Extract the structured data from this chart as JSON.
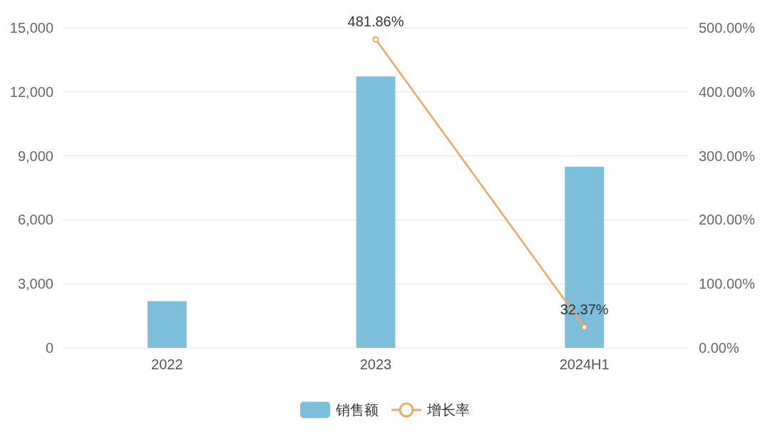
{
  "chart_data": {
    "type": "bar",
    "categories": [
      "2022",
      "2023",
      "2024H1"
    ],
    "series": [
      {
        "name": "销售额",
        "color": "#7dbedb",
        "values": [
          2190,
          12720,
          8490
        ]
      },
      {
        "name": "增长率",
        "type": "line",
        "axis": "y2",
        "color": "#eaa96a",
        "values": [
          null,
          481.86,
          32.37
        ],
        "value_labels": [
          null,
          "481.86%",
          "32.37%"
        ]
      }
    ],
    "ylim": [
      0,
      15000
    ],
    "yticks": [
      0,
      {
        "value": 3000,
        "label": "3,000"
      },
      {
        "value": 6000,
        "label": "6,000"
      },
      {
        "value": 9000,
        "label": "9,000"
      },
      {
        "value": 12000,
        "label": "12,000"
      },
      {
        "value": 15000,
        "label": "15,000"
      }
    ],
    "y2lim": [
      0,
      500
    ],
    "y2ticks": [
      {
        "value": 0,
        "label": "0.00%"
      },
      {
        "value": 100,
        "label": "100.00%"
      },
      {
        "value": 200,
        "label": "200.00%"
      },
      {
        "value": 300,
        "label": "300.00%"
      },
      {
        "value": 400,
        "label": "400.00%"
      },
      {
        "value": 500,
        "label": "500.00%"
      }
    ],
    "grid": "y",
    "legend": "bottom",
    "marker": "circle"
  }
}
